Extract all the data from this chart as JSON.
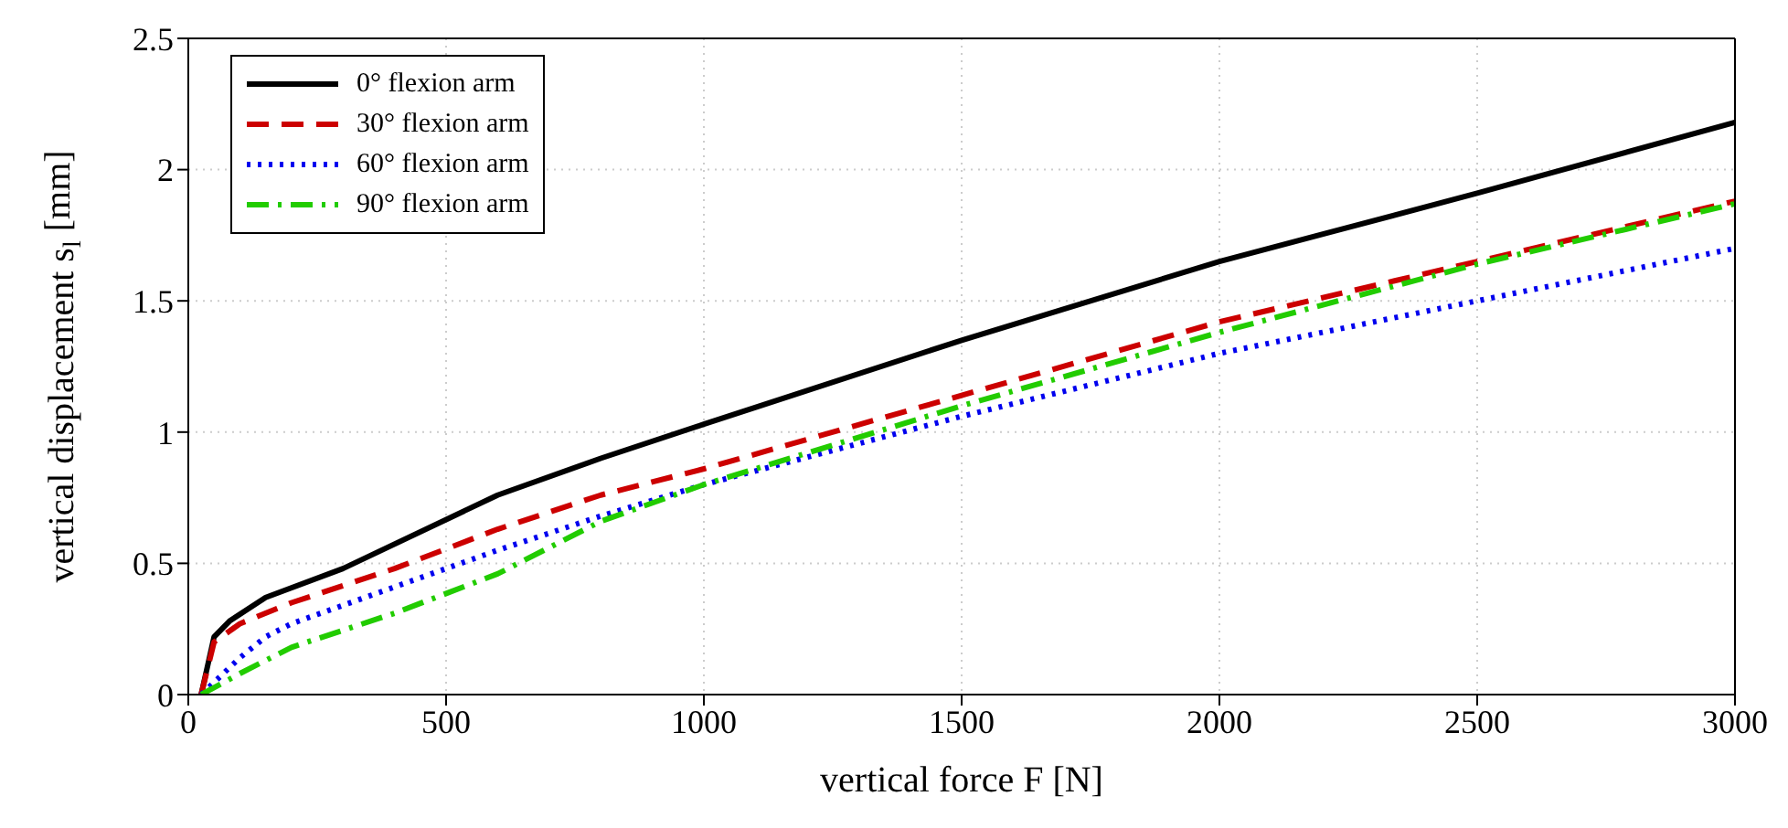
{
  "chart_data": {
    "type": "line",
    "xlabel": "vertical force F [N]",
    "ylabel": "vertical displacement s$_{l}$ [mm]",
    "xlim": [
      0,
      3000
    ],
    "xticks": [
      0,
      500,
      1000,
      1500,
      2000,
      2500,
      3000
    ],
    "ylim": [
      0,
      2.5
    ],
    "yticks": [
      0,
      0.5,
      1,
      1.5,
      2,
      2.5
    ],
    "grid": true,
    "legend": "top left",
    "marker": "none",
    "series": [
      {
        "name": "0° flexion arm",
        "color": "#000000",
        "line_style": "solid",
        "x": [
          25,
          50,
          80,
          150,
          300,
          600,
          800,
          1000,
          1500,
          2000,
          2500,
          3000
        ],
        "values": [
          0,
          0.22,
          0.28,
          0.37,
          0.48,
          0.76,
          0.9,
          1.03,
          1.35,
          1.65,
          1.91,
          2.18
        ]
      },
      {
        "name": "30° flexion arm",
        "color": "#cc0000",
        "line_style": "dashed",
        "x": [
          25,
          50,
          100,
          200,
          400,
          600,
          800,
          1000,
          1500,
          2000,
          2500,
          3000
        ],
        "values": [
          0,
          0.2,
          0.27,
          0.35,
          0.48,
          0.63,
          0.76,
          0.86,
          1.14,
          1.42,
          1.65,
          1.88
        ]
      },
      {
        "name": "60° flexion arm",
        "color": "#0000ee",
        "line_style": "dotted",
        "x": [
          25,
          100,
          150,
          200,
          400,
          600,
          800,
          1000,
          1500,
          2000,
          2500,
          3000
        ],
        "values": [
          0,
          0.14,
          0.22,
          0.27,
          0.41,
          0.55,
          0.68,
          0.8,
          1.06,
          1.3,
          1.5,
          1.7
        ]
      },
      {
        "name": "90° flexion arm",
        "color": "#22cc00",
        "line_style": "dashdot",
        "x": [
          25,
          100,
          200,
          400,
          600,
          800,
          1000,
          1500,
          2000,
          2500,
          3000
        ],
        "values": [
          0,
          0.08,
          0.18,
          0.31,
          0.46,
          0.66,
          0.8,
          1.1,
          1.38,
          1.64,
          1.87
        ]
      }
    ]
  }
}
